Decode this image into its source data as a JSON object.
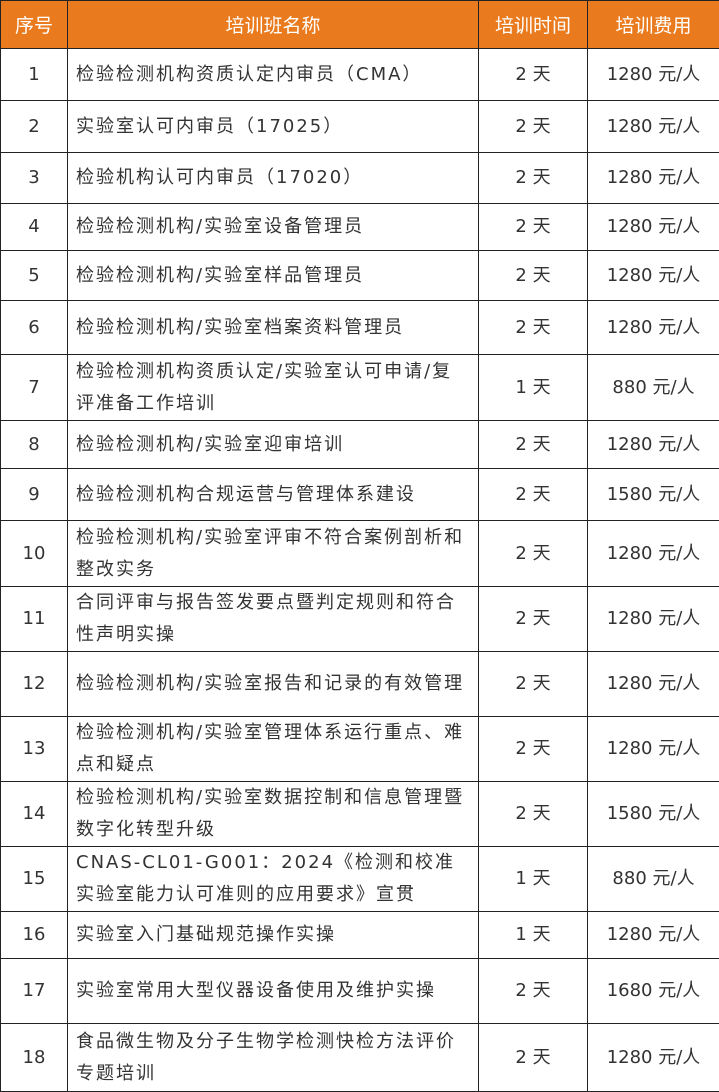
{
  "table": {
    "header": [
      "序号",
      "培训班名称",
      "培训时间",
      "培训费用"
    ],
    "rows": [
      [
        "1",
        "检验检测机构资质认定内审员（CMA）",
        "2 天",
        "1280 元/人"
      ],
      [
        "2",
        "实验室认可内审员（17025）",
        "2 天",
        "1280 元/人"
      ],
      [
        "3",
        "检验机构认可内审员（17020）",
        "2 天",
        "1280 元/人"
      ],
      [
        "4",
        "检验检测机构/实验室设备管理员",
        "2 天",
        "1280 元/人"
      ],
      [
        "5",
        "检验检测机构/实验室样品管理员",
        "2 天",
        "1280 元/人"
      ],
      [
        "6",
        "检验检测机构/实验室档案资料管理员",
        "2 天",
        "1280 元/人"
      ],
      [
        "7",
        "检验检测机构资质认定/实验室认可申请/复评准备工作培训",
        "1 天",
        "880 元/人"
      ],
      [
        "8",
        "检验检测机构/实验室迎审培训",
        "2 天",
        "1280 元/人"
      ],
      [
        "9",
        "检验检测机构合规运营与管理体系建设",
        "2 天",
        "1580 元/人"
      ],
      [
        "10",
        "检验检测机构/实验室评审不符合案例剖析和整改实务",
        "2 天",
        "1280 元/人"
      ],
      [
        "11",
        "合同评审与报告签发要点暨判定规则和符合性声明实操",
        "2 天",
        "1280 元/人"
      ],
      [
        "12",
        "检验检测机构/实验室报告和记录的有效管理",
        "2 天",
        "1280 元/人"
      ],
      [
        "13",
        "检验检测机构/实验室管理体系运行重点、难点和疑点",
        "2 天",
        "1280 元/人"
      ],
      [
        "14",
        "检验检测机构/实验室数据控制和信息管理暨数字化转型升级",
        "2 天",
        "1580 元/人"
      ],
      [
        "15",
        "CNAS-CL01-G001：2024《检测和校准实验室能力认可准则的应用要求》宣贯",
        "1 天",
        "880 元/人"
      ],
      [
        "16",
        "实验室入门基础规范操作实操",
        "1 天",
        "1280 元/人"
      ],
      [
        "17",
        "实验室常用大型仪器设备使用及维护实操",
        "2 天",
        "1680 元/人"
      ],
      [
        "18",
        "食品微生物及分子生物学检测快检方法评价专题培训",
        "2 天",
        "1280 元/人"
      ]
    ]
  }
}
